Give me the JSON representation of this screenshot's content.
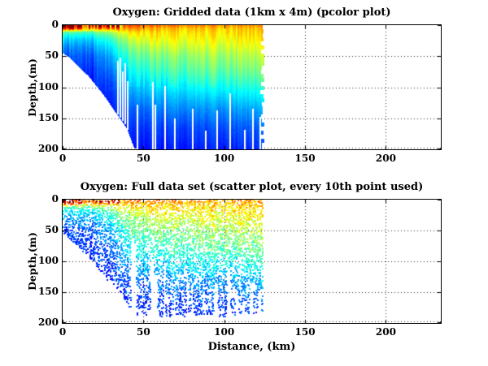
{
  "figure": {
    "background": "#ffffff",
    "text_color": "#000000",
    "axis_color": "#000000",
    "grid_color": "#2b2b2b",
    "grid_style": "dotted"
  },
  "chart_data": [
    {
      "type": "heatmap",
      "title": "Oxygen: Gridded data (1km x 4m) (pcolor plot)",
      "xlabel": "",
      "ylabel": "Depth,(m)",
      "xlim": [
        0,
        234
      ],
      "ylim": [
        0,
        200
      ],
      "y_inverted": true,
      "xticks": [
        0,
        50,
        100,
        150,
        200
      ],
      "yticks": [
        0,
        50,
        100,
        150,
        200
      ],
      "grid": "dotted",
      "colormap": "jet",
      "data_x_extent_km": 125,
      "x_nodes_km": [
        0,
        10,
        20,
        30,
        40,
        55,
        70,
        90,
        110,
        125
      ],
      "z_nodes_m": [
        0,
        5,
        12,
        22,
        35,
        50,
        70,
        90,
        110,
        135,
        165,
        200
      ],
      "oxygen_norm": [
        [
          0.97,
          0.94,
          0.92,
          0.88,
          0.8,
          0.77,
          0.76,
          0.74,
          0.73,
          0.74
        ],
        [
          0.85,
          0.8,
          0.74,
          0.76,
          0.73,
          0.7,
          0.69,
          0.68,
          0.68,
          0.69
        ],
        [
          0.45,
          0.42,
          0.45,
          0.55,
          0.62,
          0.65,
          0.65,
          0.65,
          0.66,
          0.67
        ],
        [
          0.34,
          0.32,
          0.35,
          0.45,
          0.55,
          0.61,
          0.62,
          0.62,
          0.63,
          0.65
        ],
        [
          0.26,
          0.25,
          0.28,
          0.38,
          0.48,
          0.55,
          0.57,
          0.58,
          0.59,
          0.61
        ],
        [
          0.2,
          0.2,
          0.22,
          0.32,
          0.42,
          0.49,
          0.51,
          0.53,
          0.54,
          0.56
        ],
        [
          0.17,
          0.17,
          0.18,
          0.27,
          0.36,
          0.43,
          0.46,
          0.48,
          0.49,
          0.51
        ],
        [
          0.15,
          0.15,
          0.16,
          0.22,
          0.31,
          0.37,
          0.4,
          0.42,
          0.43,
          0.45
        ],
        [
          0.14,
          0.14,
          0.15,
          0.18,
          0.26,
          0.31,
          0.33,
          0.35,
          0.36,
          0.38
        ],
        [
          0.13,
          0.13,
          0.14,
          0.16,
          0.2,
          0.24,
          0.26,
          0.27,
          0.28,
          0.3
        ],
        [
          0.12,
          0.12,
          0.12,
          0.14,
          0.16,
          0.18,
          0.19,
          0.2,
          0.21,
          0.22
        ],
        [
          0.1,
          0.1,
          0.1,
          0.12,
          0.13,
          0.14,
          0.15,
          0.15,
          0.16,
          0.17
        ]
      ],
      "bathymetry_km_depth": [
        [
          0,
          45
        ],
        [
          4,
          52
        ],
        [
          8,
          62
        ],
        [
          12,
          72
        ],
        [
          16,
          82
        ],
        [
          20,
          95
        ],
        [
          24,
          108
        ],
        [
          28,
          122
        ],
        [
          32,
          138
        ],
        [
          36,
          152
        ],
        [
          40,
          168
        ],
        [
          44,
          196
        ],
        [
          46,
          200
        ],
        [
          125,
          200
        ]
      ],
      "gap_columns_km_topdepth": [
        [
          33.5,
          58
        ],
        [
          35,
          52
        ],
        [
          36.5,
          75
        ],
        [
          38,
          62
        ],
        [
          40,
          90
        ],
        [
          46,
          128
        ],
        [
          55.5,
          92
        ],
        [
          57,
          128
        ],
        [
          63,
          98
        ],
        [
          69,
          150
        ],
        [
          80,
          135
        ],
        [
          88,
          170
        ],
        [
          95,
          137
        ],
        [
          103,
          110
        ],
        [
          112,
          168
        ],
        [
          117,
          135
        ],
        [
          122,
          148
        ]
      ]
    },
    {
      "type": "scatter",
      "title": "Oxygen: Full data set (scatter plot, every 10th point used)",
      "xlabel": "Distance, (km)",
      "ylabel": "Depth,(m)",
      "xlim": [
        0,
        234
      ],
      "ylim": [
        0,
        200
      ],
      "y_inverted": true,
      "xticks": [
        0,
        50,
        100,
        150,
        200
      ],
      "yticks": [
        0,
        50,
        100,
        150,
        200
      ],
      "grid": "dotted",
      "colormap": "jet",
      "marker_px": 2,
      "data_x_extent_km": 123,
      "max_dot_depth_m": 190,
      "dot_density_surface": 0.66,
      "dot_density_deep": 0.46,
      "color_noise": 0.13,
      "gap_columns_km_topdepth": [
        [
          43,
          60
        ],
        [
          44.5,
          70
        ],
        [
          55.5,
          95
        ],
        [
          57,
          120
        ],
        [
          63,
          100
        ],
        [
          65,
          150
        ],
        [
          69,
          150
        ],
        [
          77,
          120
        ],
        [
          80,
          135
        ],
        [
          88,
          165
        ],
        [
          95,
          135
        ],
        [
          103,
          110
        ],
        [
          108,
          155
        ],
        [
          112,
          165
        ],
        [
          117,
          135
        ],
        [
          122,
          148
        ]
      ],
      "deep_spike_columns_km_depth": [
        [
          29,
          118
        ],
        [
          31,
          132
        ],
        [
          33,
          140
        ],
        [
          35,
          150
        ],
        [
          37,
          160
        ],
        [
          39,
          165
        ],
        [
          41,
          150
        ],
        [
          42.5,
          135
        ]
      ]
    }
  ]
}
